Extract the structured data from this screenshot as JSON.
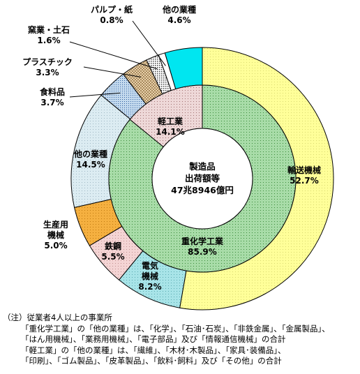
{
  "chart_data": {
    "type": "pie",
    "center_label": [
      "製造品",
      "出荷額等",
      "47兆8946億円"
    ],
    "outer": [
      {
        "name": "輸送機械",
        "value": 52.7,
        "label": [
          "輸送機械",
          "52.7%"
        ],
        "color": "#ffff99",
        "pattern": "dots-yellow"
      },
      {
        "name": "電気機械",
        "value": 8.2,
        "label": [
          "電気",
          "機械",
          "8.2%"
        ],
        "color": "#a8e4e8",
        "pattern": "dots-cyan"
      },
      {
        "name": "鉄鋼",
        "value": 5.5,
        "label": [
          "鉄鋼",
          "5.5%"
        ],
        "color": "#f2d0d0",
        "pattern": "dots-pink"
      },
      {
        "name": "生産用機械",
        "value": 5.0,
        "label": [
          "生産用",
          "機械",
          "5.0%"
        ],
        "color": "#f5b040",
        "pattern": "dots-orange"
      },
      {
        "name": "他の業種",
        "value": 14.5,
        "label": [
          "他の業種",
          "14.5%"
        ],
        "color": "#dcecf2",
        "pattern": "dots-lightblue"
      },
      {
        "name": "食料品",
        "value": 3.7,
        "label": [
          "食料品",
          "3.7%"
        ],
        "color": "#bcd4ec",
        "pattern": "dots-blue"
      },
      {
        "name": "プラスチック",
        "value": 3.3,
        "label": [
          "プラスチック",
          "3.3%"
        ],
        "color": "#f4dcb4",
        "pattern": "cross-tan"
      },
      {
        "name": "窯業・土石",
        "value": 1.6,
        "label": [
          "窯業・土石",
          "1.6%"
        ],
        "color": "#ffffff",
        "pattern": "dots-gray"
      },
      {
        "name": "パルプ・紙",
        "value": 0.8,
        "label": [
          "パルプ・紙",
          "0.8%"
        ],
        "color": "#ffffff",
        "pattern": "plain"
      },
      {
        "name": "他の業種(軽)",
        "value": 4.6,
        "label": [
          "他の業種",
          "4.6%"
        ],
        "color": "#00e6f0",
        "pattern": "solid"
      }
    ],
    "inner": [
      {
        "name": "重化学工業",
        "value": 85.9,
        "label": [
          "重化学工業",
          "85.9%"
        ],
        "color": "#a8dca8",
        "pattern": "dots-green"
      },
      {
        "name": "軽工業",
        "value": 14.1,
        "label": [
          "軽工業",
          "14.1%"
        ],
        "color": "#ecd6d6",
        "pattern": "dots-rose"
      }
    ]
  },
  "notes": [
    "（注）従業者4人以上の事業所",
    "「重化学工業」の「他の業種」は、「化学」、「石油･石炭」、「非鉄金属」、「金属製品」、",
    "「はん用機械」、「業務用機械」、「電子部品」及び「情報通信機械」の合計",
    "「軽工業」の「他の業種」は、「繊維」、「木材･木製品」、「家具･装備品」、",
    "「印刷」、「ゴム製品」、「皮革製品」、「飲料･飼料」及び「その他」の合計"
  ]
}
